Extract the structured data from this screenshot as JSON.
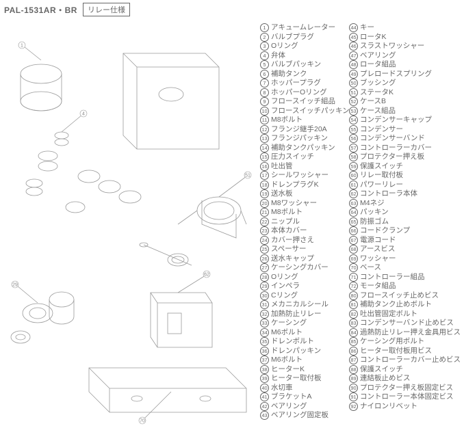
{
  "header": {
    "model": "PAL-1531AR・BR",
    "spec": "リレー仕様"
  },
  "parts_col1": [
    {
      "n": "①",
      "label": "アキュームレーター"
    },
    {
      "n": "②",
      "label": "バルブプラグ"
    },
    {
      "n": "③",
      "label": "Oリング"
    },
    {
      "n": "④",
      "label": "弁体"
    },
    {
      "n": "⑤",
      "label": "バルブパッキン"
    },
    {
      "n": "⑥",
      "label": "補助タンク"
    },
    {
      "n": "⑦",
      "label": "ホッパープラグ"
    },
    {
      "n": "⑧",
      "label": "ホッパーOリング"
    },
    {
      "n": "⑨",
      "label": "フロースイッチ組品"
    },
    {
      "n": "⑩",
      "label": "フロースイッチパッキン"
    },
    {
      "n": "⑪",
      "label": "M8ボルト"
    },
    {
      "n": "⑫",
      "label": "フランジ継手20A"
    },
    {
      "n": "⑬",
      "label": "フランジパッキン"
    },
    {
      "n": "⑭",
      "label": "補助タンクパッキン"
    },
    {
      "n": "⑮",
      "label": "圧力スイッチ"
    },
    {
      "n": "⑯",
      "label": "吐出管"
    },
    {
      "n": "⑰",
      "label": "シールワッシャー"
    },
    {
      "n": "⑱",
      "label": "ドレンプラグK"
    },
    {
      "n": "⑲",
      "label": "送水板"
    },
    {
      "n": "⑳",
      "label": "M8ワッシャー"
    },
    {
      "n": "㉑",
      "label": "M8ボルト"
    },
    {
      "n": "㉒",
      "label": "ニップル"
    },
    {
      "n": "㉓",
      "label": "本体カバー"
    },
    {
      "n": "㉔",
      "label": "カバー押さえ"
    },
    {
      "n": "㉕",
      "label": "スペーサー"
    },
    {
      "n": "㉖",
      "label": "送水キャップ"
    },
    {
      "n": "㉗",
      "label": "ケーシングカバー"
    },
    {
      "n": "㉘",
      "label": "Oリング"
    },
    {
      "n": "㉙",
      "label": "インペラ"
    },
    {
      "n": "㉚",
      "label": "Cリング"
    },
    {
      "n": "㉛",
      "label": "メカニカルシール"
    },
    {
      "n": "㉜",
      "label": "加熱防止リレー"
    },
    {
      "n": "㉝",
      "label": "ケーシング"
    },
    {
      "n": "㉞",
      "label": "M6ボルト"
    },
    {
      "n": "㉟",
      "label": "ドレンボルト"
    },
    {
      "n": "㊱",
      "label": "ドレンパッキン"
    },
    {
      "n": "㊲",
      "label": "M6ボルト"
    },
    {
      "n": "㊳",
      "label": "ヒーターK"
    },
    {
      "n": "㊴",
      "label": "ヒーター取付板"
    },
    {
      "n": "㊵",
      "label": "水切車"
    },
    {
      "n": "㊶",
      "label": "ブラケットA"
    },
    {
      "n": "㊷",
      "label": "ベアリング"
    },
    {
      "n": "㊸",
      "label": "ベアリング固定板"
    }
  ],
  "parts_col2": [
    {
      "n": "㊹",
      "label": "キー"
    },
    {
      "n": "㊺",
      "label": "ロータK"
    },
    {
      "n": "㊻",
      "label": "スラストワッシャー"
    },
    {
      "n": "㊼",
      "label": "ベアリング"
    },
    {
      "n": "㊽",
      "label": "ロータ組品"
    },
    {
      "n": "㊾",
      "label": "プレロードスプリング"
    },
    {
      "n": "㊿",
      "label": "ブッシング"
    },
    {
      "n": "51",
      "label": "ステータK"
    },
    {
      "n": "52",
      "label": "ケースB"
    },
    {
      "n": "53",
      "label": "ケース組品"
    },
    {
      "n": "54",
      "label": "コンデンサーキャップ"
    },
    {
      "n": "55",
      "label": "コンデンサー"
    },
    {
      "n": "56",
      "label": "コンデンサーバンド"
    },
    {
      "n": "57",
      "label": "コントローラーカバー"
    },
    {
      "n": "58",
      "label": "プロテクター押え板"
    },
    {
      "n": "59",
      "label": "保護スイッチ"
    },
    {
      "n": "60",
      "label": "リレー取付板"
    },
    {
      "n": "61",
      "label": "パワーリレー"
    },
    {
      "n": "62",
      "label": "コントローラ本体"
    },
    {
      "n": "63",
      "label": "M4ネジ"
    },
    {
      "n": "64",
      "label": "パッキン"
    },
    {
      "n": "65",
      "label": "防振ゴム"
    },
    {
      "n": "66",
      "label": "コードクランプ"
    },
    {
      "n": "67",
      "label": "電源コード"
    },
    {
      "n": "68",
      "label": "アースビス"
    },
    {
      "n": "69",
      "label": "ワッシャー"
    },
    {
      "n": "70",
      "label": "ベース"
    },
    {
      "n": "71",
      "label": "コントローラー組品"
    },
    {
      "n": "72",
      "label": "モータ組品"
    },
    {
      "n": "80",
      "label": "フロースイッチ止めビス"
    },
    {
      "n": "81",
      "label": "補助タンク止めボルト"
    },
    {
      "n": "82",
      "label": "吐出管固定ボルト"
    },
    {
      "n": "83",
      "label": "コンデンサーバンド止めビス"
    },
    {
      "n": "84",
      "label": "過熱防止リレー押え金具用ビス"
    },
    {
      "n": "85",
      "label": "ケーシング用ボルト"
    },
    {
      "n": "86",
      "label": "ヒーター取付板用ビス"
    },
    {
      "n": "87",
      "label": "コントローラーカバー止めビス"
    },
    {
      "n": "88",
      "label": "保護スイッチ"
    },
    {
      "n": "89",
      "label": "連結板止めビス"
    },
    {
      "n": "90",
      "label": "プロテクター押え板固定ビス"
    },
    {
      "n": "91",
      "label": "コントローラー本体固定ビス"
    },
    {
      "n": "92",
      "label": "ナイロンリベット"
    }
  ],
  "diagram": {
    "stroke": "#888",
    "fill": "#fff"
  }
}
